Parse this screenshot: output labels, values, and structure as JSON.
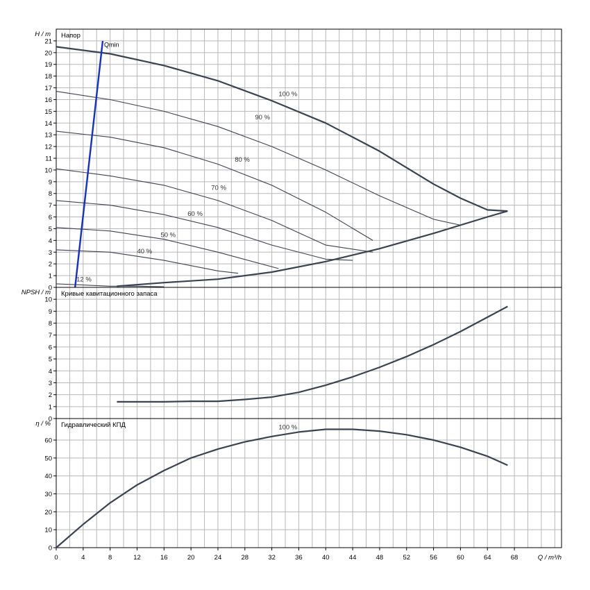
{
  "chart_data": [
    {
      "type": "line",
      "title": "Напор",
      "ylabel": "H / m",
      "ylim": [
        0,
        22
      ],
      "xlim": [
        0,
        75
      ],
      "yticks": [
        0,
        1,
        2,
        3,
        4,
        5,
        6,
        7,
        8,
        9,
        10,
        11,
        12,
        13,
        14,
        15,
        16,
        17,
        18,
        19,
        20,
        21
      ],
      "grid": true,
      "series": [
        {
          "label": "100 %",
          "label_at": [
            33,
            16.3
          ],
          "x": [
            0,
            8,
            16,
            24,
            32,
            40,
            48,
            56,
            60,
            64,
            67
          ],
          "y": [
            20.5,
            19.9,
            18.9,
            17.6,
            15.9,
            14.0,
            11.6,
            8.8,
            7.6,
            6.6,
            6.5
          ]
        },
        {
          "label": "90 %",
          "label_at": [
            29.5,
            14.3
          ],
          "x": [
            0,
            8,
            16,
            24,
            32,
            40,
            48,
            56,
            60
          ],
          "y": [
            16.7,
            16.0,
            15.0,
            13.7,
            12.0,
            10.0,
            7.8,
            5.8,
            5.3
          ]
        },
        {
          "label": "80 %",
          "label_at": [
            26.5,
            10.7
          ],
          "x": [
            0,
            8,
            16,
            24,
            32,
            40,
            47
          ],
          "y": [
            13.3,
            12.8,
            11.9,
            10.5,
            8.7,
            6.4,
            4.0
          ]
        },
        {
          "label": "70 %",
          "label_at": [
            23,
            8.3
          ],
          "x": [
            0,
            8,
            16,
            24,
            32,
            40,
            47
          ],
          "y": [
            10.1,
            9.5,
            8.7,
            7.4,
            5.7,
            3.6,
            3.0
          ]
        },
        {
          "label": "60 %",
          "label_at": [
            19.5,
            6.1
          ],
          "x": [
            0,
            8,
            16,
            24,
            32,
            40,
            44
          ],
          "y": [
            7.4,
            7.0,
            6.2,
            5.1,
            3.6,
            2.4,
            2.3
          ]
        },
        {
          "label": "50 %",
          "label_at": [
            15.5,
            4.3
          ],
          "x": [
            0,
            8,
            16,
            24,
            33
          ],
          "y": [
            5.1,
            4.8,
            4.1,
            3.0,
            1.6
          ]
        },
        {
          "label": "40 %",
          "label_at": [
            12,
            2.9
          ],
          "x": [
            0,
            8,
            16,
            24,
            27
          ],
          "y": [
            3.2,
            3.0,
            2.3,
            1.4,
            1.2
          ]
        },
        {
          "label": "12 %",
          "label_at": [
            3,
            0.5
          ],
          "x": [
            0,
            4,
            8,
            12,
            16
          ],
          "y": [
            0.3,
            0.2,
            0.1,
            0.1,
            0.05
          ]
        },
        {
          "label": "",
          "x": [
            9,
            16,
            24,
            32,
            40,
            48,
            56,
            64,
            67
          ],
          "y": [
            0.1,
            0.4,
            0.7,
            1.3,
            2.2,
            3.3,
            4.6,
            6.0,
            6.5
          ]
        }
      ],
      "reference_line": {
        "label": "Qmin",
        "x": [
          2.8,
          6.9
        ],
        "y": [
          0,
          21
        ]
      }
    },
    {
      "type": "line",
      "title": "Кривые кавитационного запаса",
      "ylabel": "NPSH / m",
      "ylim": [
        0,
        11
      ],
      "xlim": [
        0,
        75
      ],
      "yticks": [
        0,
        1,
        2,
        3,
        4,
        5,
        6,
        7,
        8,
        9,
        10
      ],
      "grid": true,
      "series": [
        {
          "x": [
            9,
            16,
            20,
            24,
            28,
            32,
            36,
            40,
            44,
            48,
            52,
            56,
            60,
            64,
            67
          ],
          "y": [
            1.4,
            1.4,
            1.45,
            1.45,
            1.6,
            1.8,
            2.2,
            2.8,
            3.5,
            4.3,
            5.2,
            6.2,
            7.3,
            8.5,
            9.4
          ]
        }
      ]
    },
    {
      "type": "line",
      "title": "Гидравлический КПД",
      "ylabel": "η / %",
      "ylim": [
        0,
        72
      ],
      "xlim": [
        0,
        75
      ],
      "yticks": [
        0,
        10,
        20,
        30,
        40,
        50,
        60
      ],
      "grid": true,
      "series": [
        {
          "label": "100 %",
          "label_at": [
            33,
            66
          ],
          "x": [
            0,
            4,
            8,
            12,
            16,
            20,
            24,
            28,
            32,
            36,
            40,
            44,
            48,
            52,
            56,
            60,
            64,
            67
          ],
          "y": [
            0,
            13,
            25,
            35,
            43,
            50,
            55,
            59,
            62,
            64.5,
            66,
            66,
            65,
            63,
            60,
            56,
            51,
            46
          ]
        }
      ]
    }
  ],
  "x_axis": {
    "label": "Q / m³/h",
    "ticks": [
      0,
      4,
      8,
      12,
      16,
      20,
      24,
      28,
      32,
      36,
      40,
      44,
      48,
      52,
      56,
      60,
      64,
      68
    ]
  },
  "colors": {
    "curve": "#3a4350",
    "grid": "#b8b8b8",
    "ghost": "#c4c4c4",
    "qmin": "#1230d0"
  }
}
